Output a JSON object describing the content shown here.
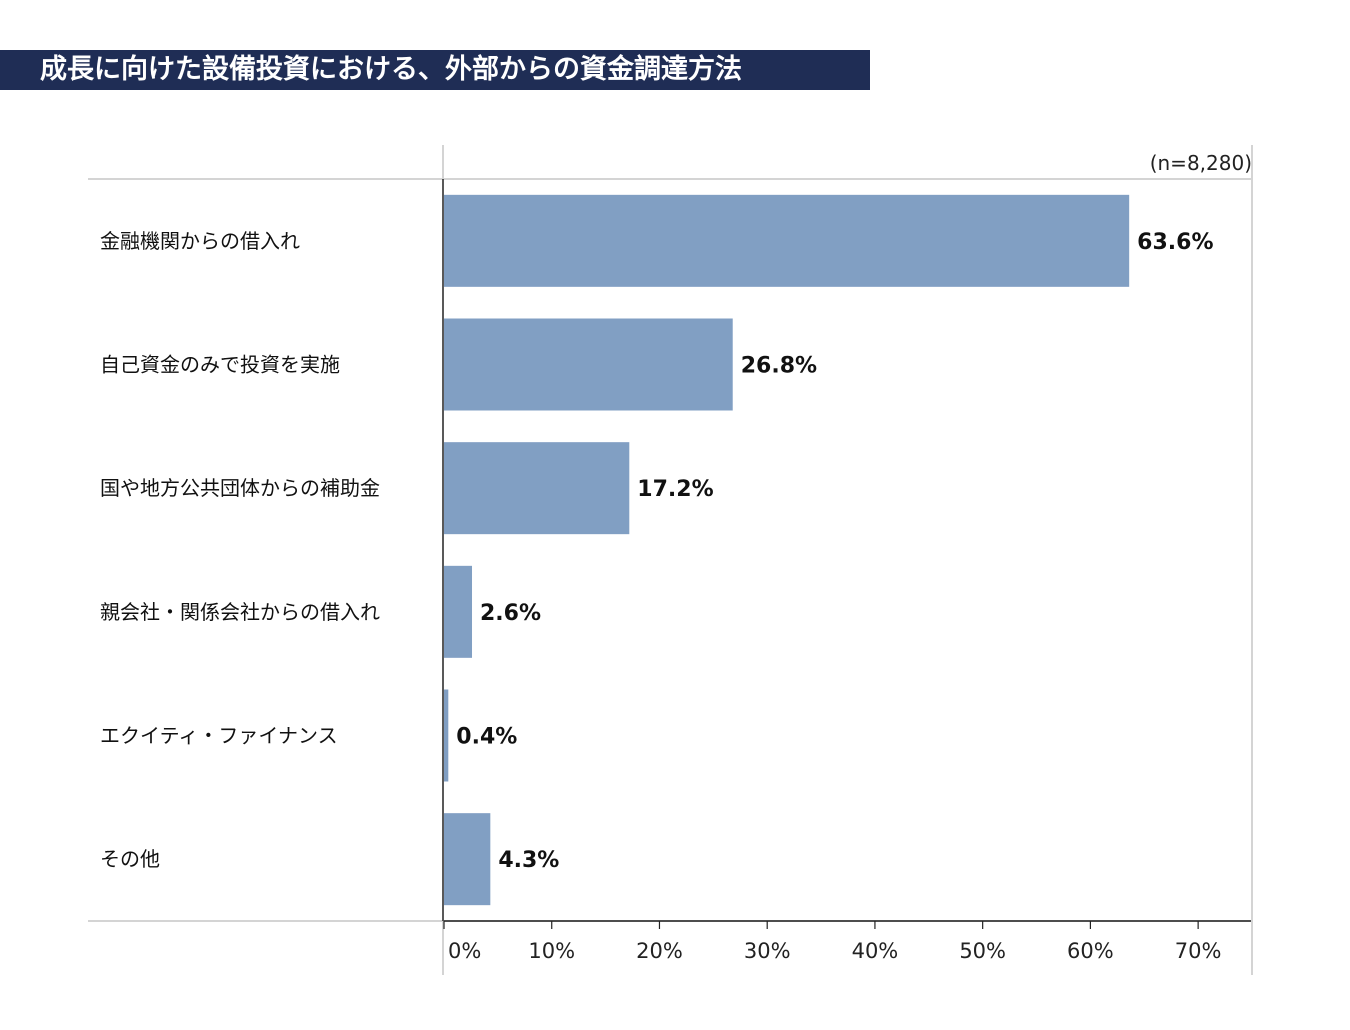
{
  "chart_data": {
    "type": "bar",
    "orientation": "horizontal",
    "title": "成長に向けた設備投資における、外部からの資金調達方法",
    "sample_size": "(n=8,280)",
    "categories": [
      "金融機関からの借入れ",
      "自己資金のみで投資を実施",
      "国や地方公共団体からの補助金",
      "親会社・関係会社からの借入れ",
      "エクイティ・ファイナンス",
      "その他"
    ],
    "values": [
      63.6,
      26.8,
      17.2,
      2.6,
      0.4,
      4.3
    ],
    "value_labels": [
      "63.6%",
      "26.8%",
      "17.2%",
      "2.6%",
      "0.4%",
      "4.3%"
    ],
    "xlim": [
      0,
      75
    ],
    "xticks": [
      0,
      10,
      20,
      30,
      40,
      50,
      60,
      70
    ],
    "xtick_labels": [
      "0%",
      "10%",
      "20%",
      "30%",
      "40%",
      "50%",
      "60%",
      "70%"
    ],
    "xlabel": "",
    "ylabel": "",
    "bar_color": "#819fc3"
  }
}
